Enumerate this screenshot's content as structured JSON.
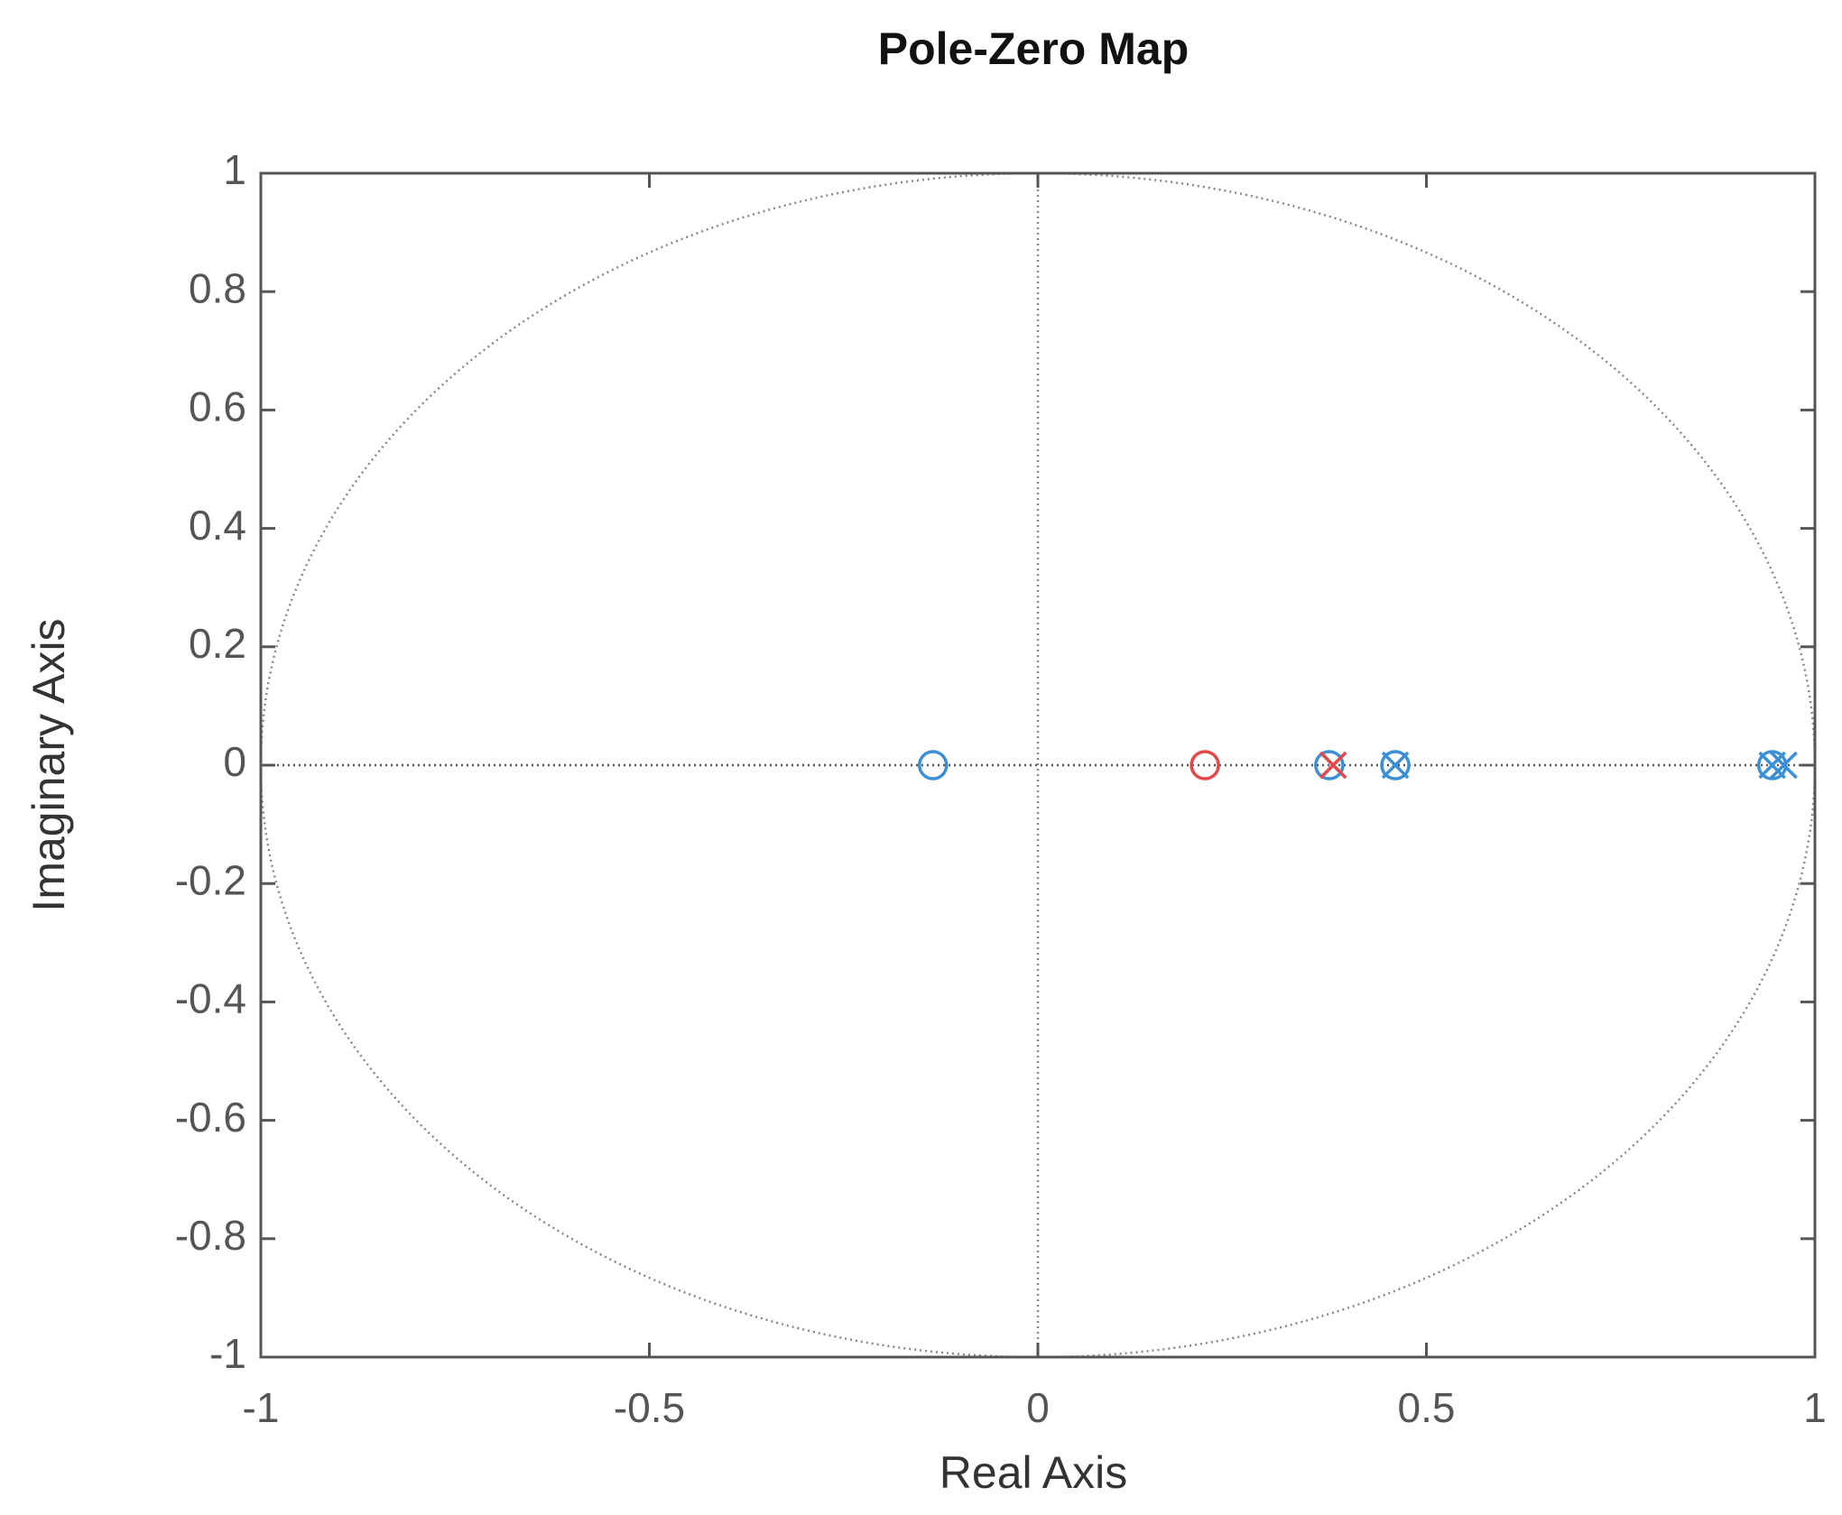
{
  "chart_data": {
    "type": "scatter",
    "title": "Pole-Zero Map",
    "xlabel": "Real Axis",
    "ylabel": "Imaginary Axis",
    "xlim": [
      -1,
      1
    ],
    "ylim": [
      -1,
      1
    ],
    "xticks": [
      -1,
      -0.5,
      0,
      0.5,
      1
    ],
    "yticks": [
      -1,
      -0.8,
      -0.6,
      -0.4,
      -0.2,
      0,
      0.2,
      0.4,
      0.6,
      0.8,
      1
    ],
    "unit_circle": true,
    "series": [
      {
        "color": "#3b8fd6",
        "marker": "o",
        "x": [
          -0.135,
          0.375,
          0.46,
          0.945
        ],
        "y": [
          0,
          0,
          0,
          0
        ]
      },
      {
        "color": "#3b8fd6",
        "marker": "x",
        "x": [
          0.38,
          0.46,
          0.945,
          0.96
        ],
        "y": [
          0,
          0,
          0,
          0
        ]
      },
      {
        "color": "#e8474a",
        "marker": "o",
        "x": [
          0.215
        ],
        "y": [
          0
        ]
      },
      {
        "color": "#e8474a",
        "marker": "x",
        "x": [
          0.38
        ],
        "y": [
          0
        ]
      }
    ]
  }
}
